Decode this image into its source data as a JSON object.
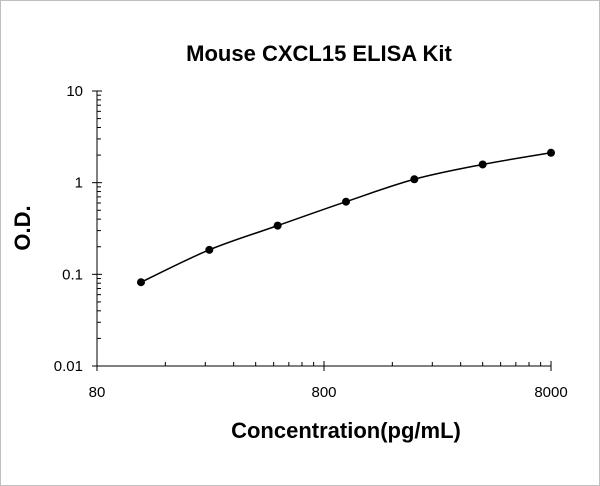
{
  "chart_data": {
    "type": "scatter",
    "title": "Mouse CXCL15 ELISA Kit",
    "xlabel": "Concentration(pg/mL)",
    "ylabel": "O.D.",
    "x_scale": "log",
    "y_scale": "log",
    "xlim": [
      80,
      8000
    ],
    "ylim": [
      0.01,
      10
    ],
    "x_ticks": [
      "80",
      "800",
      "8000"
    ],
    "y_ticks": [
      "0.01",
      "0.1",
      "1",
      "10"
    ],
    "grid": false,
    "legend": "none",
    "fit_line": true,
    "series": [
      {
        "x": [
          125,
          250,
          500,
          1000,
          2000,
          4000,
          8000
        ],
        "y": [
          0.082,
          0.185,
          0.34,
          0.62,
          1.09,
          1.58,
          2.12
        ]
      }
    ],
    "colors": {
      "points": "#000000",
      "line": "#000000",
      "axis": "#000000"
    }
  }
}
